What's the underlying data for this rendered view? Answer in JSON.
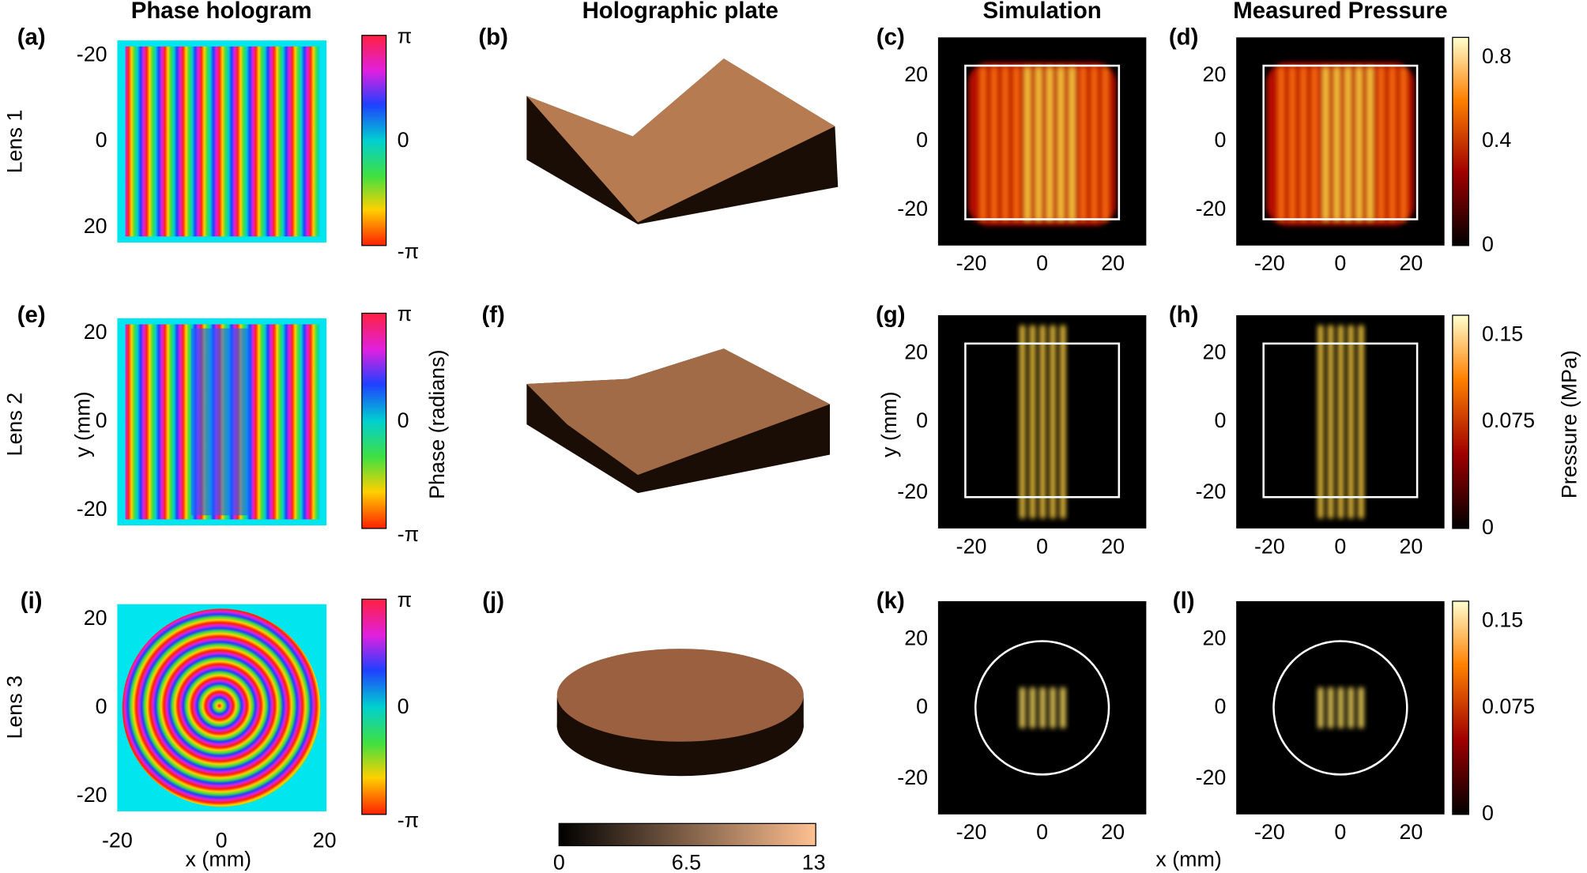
{
  "columns": [
    "Phase hologram",
    "Holographic plate",
    "Simulation",
    "Measured Pressure"
  ],
  "rows": [
    "Lens 1",
    "Lens 2",
    "Lens 3"
  ],
  "panels": [
    "(a)",
    "(b)",
    "(c)",
    "(d)",
    "(e)",
    "(f)",
    "(g)",
    "(h)",
    "(i)",
    "(j)",
    "(k)",
    "(l)"
  ],
  "axis_labels": {
    "x_left": "x (mm)",
    "y_left": "y (mm)",
    "phase": "Phase (radians)",
    "y_right": "y (mm)",
    "x_right": "x (mm)",
    "pressure": "Pressure (MPa)"
  },
  "hologram_yticks": [
    [
      -20,
      0,
      20
    ],
    [
      20,
      0,
      -20
    ],
    [
      20,
      0,
      -20
    ]
  ],
  "hologram_xticks": [
    -20,
    0,
    20
  ],
  "phase_ticks": [
    "π",
    "0",
    "-π"
  ],
  "field_yticks": [
    20,
    0,
    -20
  ],
  "field_xticks": [
    -20,
    0,
    20
  ],
  "pressure_ticks": [
    [
      0.8,
      0.4,
      0
    ],
    [
      0.15,
      0.075,
      0
    ],
    [
      0.15,
      0.075,
      0
    ]
  ],
  "plate_ticks": [
    0,
    6.5,
    13
  ]
}
